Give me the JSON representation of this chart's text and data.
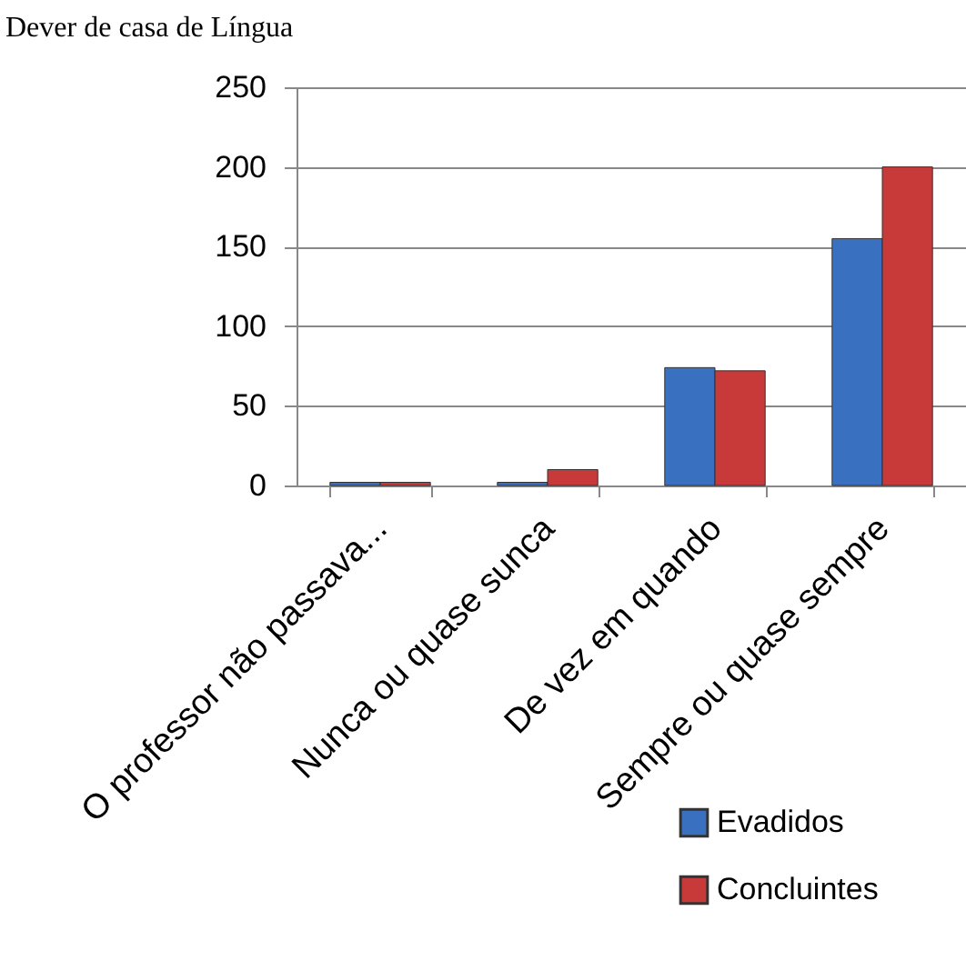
{
  "chart_data": {
    "type": "bar",
    "title": "Dever de casa de Língua",
    "categories": [
      "O professor não passava...",
      "Nunca ou quase sunca",
      "De vez em quando",
      "Sempre ou quase sempre"
    ],
    "series": [
      {
        "name": "Evadidos",
        "color": "#3a70c0",
        "values": [
          2,
          2,
          74,
          155
        ]
      },
      {
        "name": "Concluintes",
        "color": "#c83a3a",
        "values": [
          2,
          10,
          72,
          200
        ]
      }
    ],
    "ylim": [
      0,
      250
    ],
    "yticks": [
      0,
      50,
      100,
      150,
      200,
      250
    ],
    "grid": "y",
    "legend": "bottom right"
  }
}
